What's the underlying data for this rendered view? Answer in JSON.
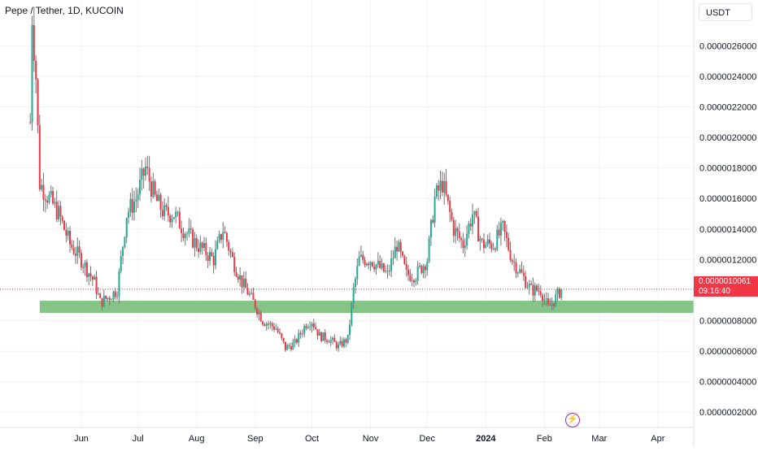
{
  "header": {
    "symbol": "Pepe / Tether, 1D, KUCOIN",
    "currency": "USDT"
  },
  "last_price": {
    "value": "0.0000010061",
    "countdown": "09:16:40",
    "color": "#f23645"
  },
  "colors": {
    "up": "#22ab94",
    "down": "#f23645",
    "wick": "#737375",
    "zone": "#7ec07f",
    "grid": "#f0f3fa",
    "axis_text": "#131722"
  },
  "badge_icon": "lightning-icon",
  "chart_data": {
    "type": "candlestick",
    "title": "Pepe / Tether, 1D, KUCOIN",
    "y_ticks": [
      "0.0000002000",
      "0.0000004000",
      "0.0000006000",
      "0.0000008000",
      "0.0000010000",
      "0.0000012000",
      "0.0000014000",
      "0.0000016000",
      "0.0000018000",
      "0.0000020000",
      "0.0000022000",
      "0.0000024000",
      "0.0000026000"
    ],
    "y_tick_values": [
      2e-07,
      4e-07,
      6e-07,
      8e-07,
      1e-06,
      1.2e-06,
      1.4e-06,
      1.6e-06,
      1.8e-06,
      2e-06,
      2.2e-06,
      2.4e-06,
      2.6e-06
    ],
    "ylim": [
      1e-07,
      2.9e-06
    ],
    "x_ticks": [
      "Jun",
      "Jul",
      "Aug",
      "Sep",
      "Oct",
      "Nov",
      "Dec",
      "2024",
      "Feb",
      "Mar",
      "Apr"
    ],
    "x_tick_dates": [
      "2023-06-01",
      "2023-07-01",
      "2023-08-01",
      "2023-09-01",
      "2023-10-01",
      "2023-11-01",
      "2023-12-01",
      "2024-01-01",
      "2024-02-01",
      "2024-03-01",
      "2024-04-01"
    ],
    "x_range": [
      "2023-04-19",
      "2024-04-20"
    ],
    "support_zone": {
      "from": "2023-05-10",
      "to": "end",
      "low": 8.5e-07,
      "high": 9.3e-07
    },
    "last_price_line": 1.0061e-06,
    "grid": true,
    "anchors": [
      [
        "2023-05-05",
        2.1e-06
      ],
      [
        "2023-05-06",
        2.8e-06
      ],
      [
        "2023-05-08",
        2.4e-06
      ],
      [
        "2023-05-10",
        1.7e-06
      ],
      [
        "2023-05-15",
        1.6e-06
      ],
      [
        "2023-05-20",
        1.5e-06
      ],
      [
        "2023-05-26",
        1.3e-06
      ],
      [
        "2023-06-01",
        1.2e-06
      ],
      [
        "2023-06-08",
        1.05e-06
      ],
      [
        "2023-06-11",
        9.2e-07
      ],
      [
        "2023-06-15",
        9.5e-07
      ],
      [
        "2023-06-20",
        1e-06
      ],
      [
        "2023-06-25",
        1.5e-06
      ],
      [
        "2023-06-30",
        1.6e-06
      ],
      [
        "2023-07-05",
        1.8e-06
      ],
      [
        "2023-07-10",
        1.6e-06
      ],
      [
        "2023-07-15",
        1.5e-06
      ],
      [
        "2023-07-20",
        1.5e-06
      ],
      [
        "2023-07-25",
        1.4e-06
      ],
      [
        "2023-08-01",
        1.3e-06
      ],
      [
        "2023-08-10",
        1.2e-06
      ],
      [
        "2023-08-15",
        1.4e-06
      ],
      [
        "2023-08-20",
        1.2e-06
      ],
      [
        "2023-08-25",
        1.05e-06
      ],
      [
        "2023-09-01",
        9e-07
      ],
      [
        "2023-09-05",
        8e-07
      ],
      [
        "2023-09-12",
        7.5e-07
      ],
      [
        "2023-09-17",
        6.2e-07
      ],
      [
        "2023-09-22",
        6.5e-07
      ],
      [
        "2023-09-28",
        7.8e-07
      ],
      [
        "2023-10-01",
        8e-07
      ],
      [
        "2023-10-05",
        7e-07
      ],
      [
        "2023-10-10",
        6.8e-07
      ],
      [
        "2023-10-15",
        6.3e-07
      ],
      [
        "2023-10-20",
        6.8e-07
      ],
      [
        "2023-10-23",
        1e-06
      ],
      [
        "2023-10-26",
        1.2e-06
      ],
      [
        "2023-11-01",
        1.2e-06
      ],
      [
        "2023-11-10",
        1.1e-06
      ],
      [
        "2023-11-15",
        1.3e-06
      ],
      [
        "2023-11-20",
        1.1e-06
      ],
      [
        "2023-11-25",
        1.1e-06
      ],
      [
        "2023-12-01",
        1.2e-06
      ],
      [
        "2023-12-05",
        1.6e-06
      ],
      [
        "2023-12-09",
        1.7e-06
      ],
      [
        "2023-12-15",
        1.4e-06
      ],
      [
        "2023-12-20",
        1.3e-06
      ],
      [
        "2023-12-25",
        1.5e-06
      ],
      [
        "2023-12-30",
        1.3e-06
      ],
      [
        "2024-01-05",
        1.3e-06
      ],
      [
        "2024-01-10",
        1.4e-06
      ],
      [
        "2024-01-15",
        1.2e-06
      ],
      [
        "2024-01-20",
        1.1e-06
      ],
      [
        "2024-01-25",
        1e-06
      ],
      [
        "2024-01-30",
        1e-06
      ],
      [
        "2024-02-03",
        8.8e-07
      ],
      [
        "2024-02-07",
        9.5e-07
      ],
      [
        "2024-02-10",
        1.0061e-06
      ]
    ]
  }
}
